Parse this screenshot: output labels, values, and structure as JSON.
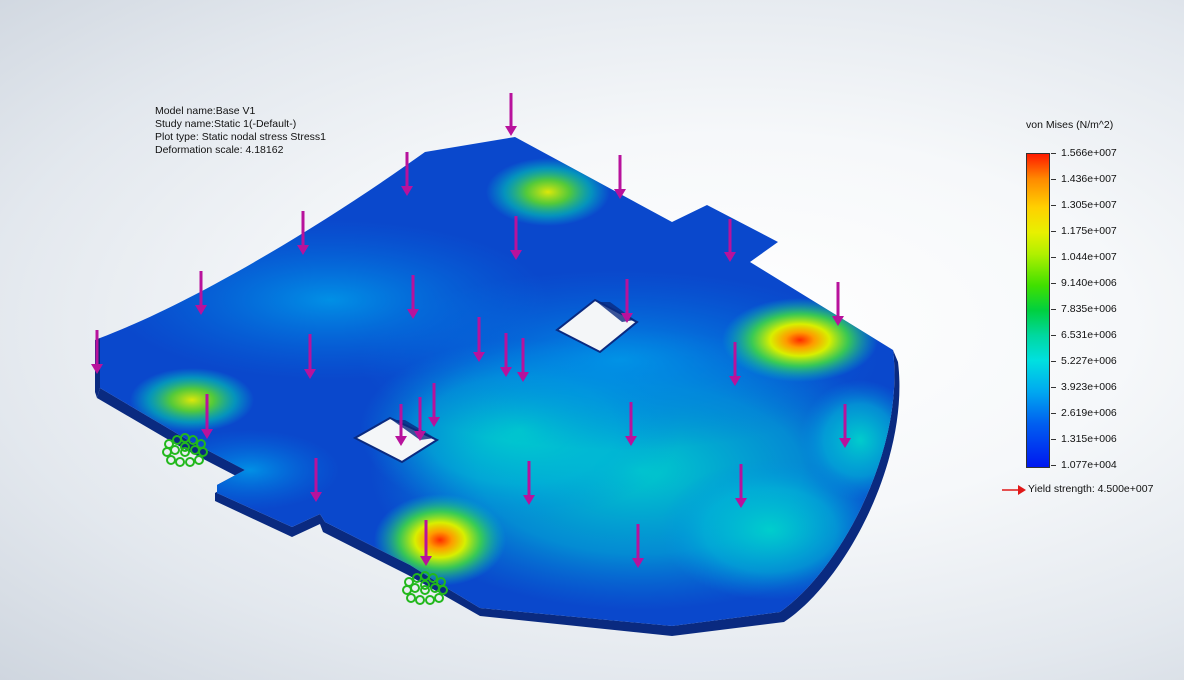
{
  "model_info": {
    "model_name": "Model name:Base V1",
    "study_name": "Study name:Static 1(-Default-)",
    "plot_type": "Plot type: Static nodal stress Stress1",
    "deformation_scale": "Deformation scale: 4.18162"
  },
  "legend": {
    "title": "von Mises (N/m^2)",
    "values": [
      "1.566e+007",
      "1.436e+007",
      "1.305e+007",
      "1.175e+007",
      "1.044e+007",
      "9.140e+006",
      "7.835e+006",
      "6.531e+006",
      "5.227e+006",
      "3.923e+006",
      "2.619e+006",
      "1.315e+006",
      "1.077e+004"
    ],
    "yield_strength": "Yield strength: 4.500e+007"
  },
  "colors": {
    "load_arrow": "#b8129c",
    "fixture": "#22b81c",
    "yield_arrow": "#e01818",
    "plate_base": "#0a48cc"
  },
  "icons": {
    "load": "downward-force-arrow-icon",
    "fixture": "fixed-geometry-icon",
    "yield": "yield-arrow-icon"
  }
}
